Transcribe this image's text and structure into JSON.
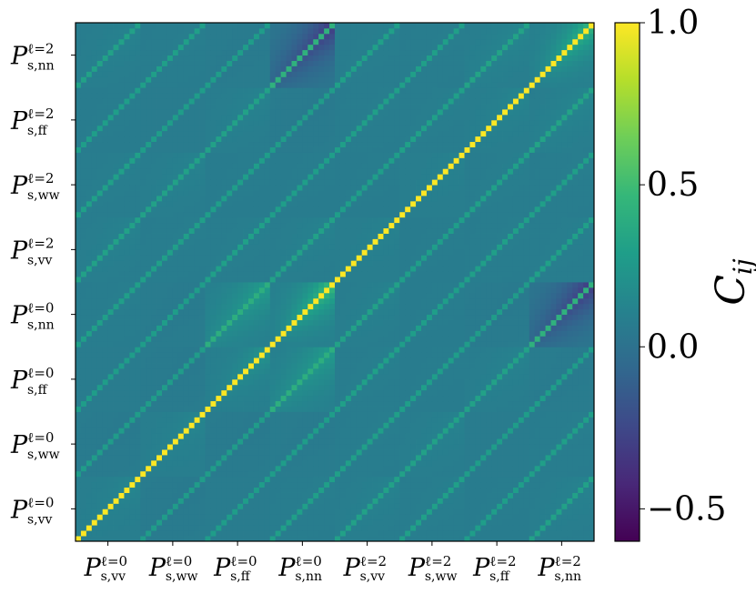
{
  "chart_data": {
    "type": "heatmap",
    "title": "",
    "blocks": [
      {
        "sym": "P",
        "sup": "ℓ=0",
        "sub": "s,vv"
      },
      {
        "sym": "P",
        "sup": "ℓ=0",
        "sub": "s,ww"
      },
      {
        "sym": "P",
        "sup": "ℓ=0",
        "sub": "s,ff"
      },
      {
        "sym": "P",
        "sup": "ℓ=0",
        "sub": "s,nn"
      },
      {
        "sym": "P",
        "sup": "ℓ=2",
        "sub": "s,vv"
      },
      {
        "sym": "P",
        "sup": "ℓ=2",
        "sub": "s,ww"
      },
      {
        "sym": "P",
        "sup": "ℓ=2",
        "sub": "s,ff"
      },
      {
        "sym": "P",
        "sup": "ℓ=2",
        "sub": "s,nn"
      }
    ],
    "colorbar": {
      "label": "C",
      "label_sub": "ij",
      "ticks": [
        "−0.5",
        "0.0",
        "0.5",
        "1.0"
      ],
      "tick_values": [
        -0.5,
        0.0,
        0.5,
        1.0
      ],
      "vmin": -0.6,
      "vmax": 1.0,
      "colormap": "viridis"
    },
    "diagonal_value": 1.0,
    "block_values": [
      [
        0.0,
        0.05,
        0.07,
        0.09,
        0.12,
        0.1,
        0.08,
        0.12
      ],
      [
        0.05,
        0.0,
        0.05,
        0.06,
        0.09,
        0.12,
        0.07,
        0.09
      ],
      [
        0.07,
        0.05,
        0.0,
        0.3,
        0.1,
        0.08,
        0.12,
        0.06
      ],
      [
        0.09,
        0.06,
        0.3,
        0.0,
        0.12,
        0.08,
        0.05,
        -0.35
      ],
      [
        0.12,
        0.09,
        0.1,
        0.12,
        0.0,
        0.08,
        0.09,
        0.1
      ],
      [
        0.1,
        0.12,
        0.08,
        0.08,
        0.08,
        0.0,
        0.1,
        0.09
      ],
      [
        0.08,
        0.07,
        0.12,
        0.05,
        0.09,
        0.1,
        0.0,
        0.15
      ],
      [
        0.12,
        0.09,
        0.06,
        -0.35,
        0.1,
        0.09,
        0.15,
        0.0
      ]
    ],
    "diagonal_block_peak": [
      0.15,
      0.15,
      0.25,
      0.55,
      0.12,
      0.12,
      0.15,
      0.5
    ]
  },
  "colors": {
    "viridis": [
      "#440154",
      "#482878",
      "#3e4989",
      "#31688e",
      "#26828e",
      "#1f9e89",
      "#35b779",
      "#6ece58",
      "#b5de2b",
      "#fde725"
    ]
  }
}
